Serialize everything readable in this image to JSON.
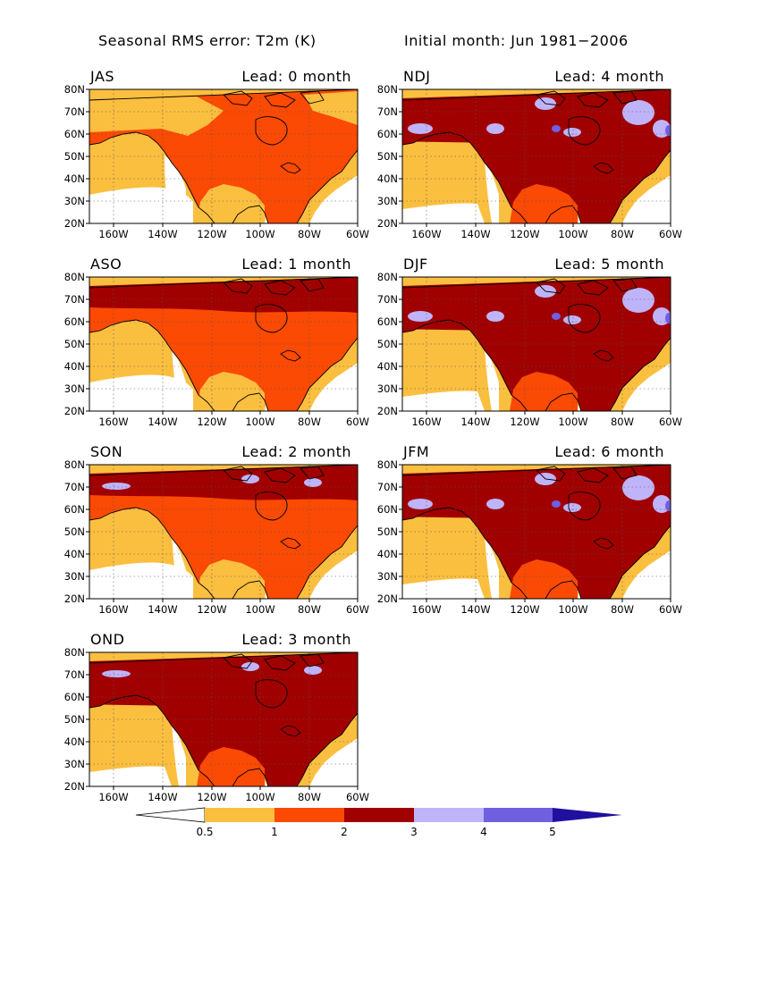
{
  "header": {
    "title": "Seasonal RMS error: T2m (K)",
    "initial": "Initial month: Jun 1981−2006"
  },
  "axes": {
    "lat_ticks": [
      "80N",
      "70N",
      "60N",
      "50N",
      "40N",
      "30N",
      "20N"
    ],
    "lon_ticks": [
      "160W",
      "140W",
      "120W",
      "100W",
      "80W",
      "60W"
    ],
    "lon_range": [
      "170W",
      "60W"
    ],
    "lat_range": [
      "20N",
      "80N"
    ],
    "gridlines": "dotted"
  },
  "panels": [
    {
      "id": "jas",
      "season": "JAS",
      "lead": "Lead: 0 month",
      "lead_months": 0
    },
    {
      "id": "ndj",
      "season": "NDJ",
      "lead": "Lead: 4 month",
      "lead_months": 4
    },
    {
      "id": "aso",
      "season": "ASO",
      "lead": "Lead: 1 month",
      "lead_months": 1
    },
    {
      "id": "djf",
      "season": "DJF",
      "lead": "Lead: 5 month",
      "lead_months": 5
    },
    {
      "id": "son",
      "season": "SON",
      "lead": "Lead: 2 month",
      "lead_months": 2
    },
    {
      "id": "jfm",
      "season": "JFM",
      "lead": "Lead: 6 month",
      "lead_months": 6
    },
    {
      "id": "ond",
      "season": "OND",
      "lead": "Lead: 3 month",
      "lead_months": 3
    }
  ],
  "colorbar": {
    "labels": [
      "0.5",
      "1",
      "2",
      "3",
      "4",
      "5"
    ],
    "colors": {
      "below": "#ffffff",
      "c1": "#fbbf40",
      "c2": "#fb4a04",
      "c3": "#a00000",
      "c4": "#bfb4fa",
      "c5": "#7060e0",
      "above": "#2010a0"
    }
  }
}
